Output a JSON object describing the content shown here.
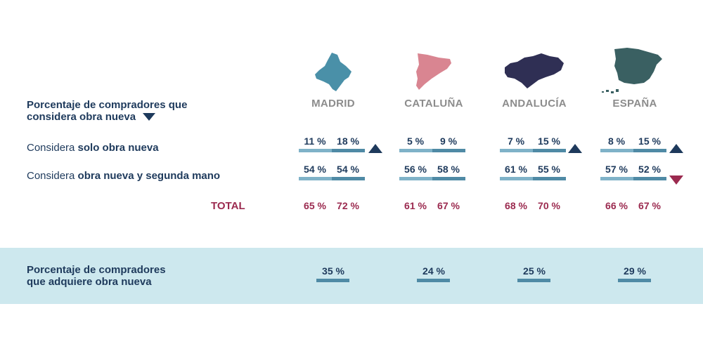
{
  "header": {
    "question_line1": "Porcentaje de compradores que",
    "question_line2": "considera obra nueva"
  },
  "rows": {
    "solo_prefix": "Considera ",
    "solo_bold": "solo obra nueva",
    "mixta_prefix": "Considera ",
    "mixta_bold": "obra nueva y segunda mano",
    "total_label": "TOTAL"
  },
  "regions": [
    {
      "name": "MADRID",
      "map_color": "#4a90a8",
      "solo": [
        "11 %",
        "18 %"
      ],
      "mixta": [
        "54 %",
        "54 %"
      ],
      "total": [
        "65 %",
        "72 %"
      ],
      "solo_trend": "up",
      "mixta_trend": "",
      "adquiere": "35 %"
    },
    {
      "name": "CATALUÑA",
      "map_color": "#d98591",
      "solo": [
        "5 %",
        "9 %"
      ],
      "mixta": [
        "56 %",
        "58 %"
      ],
      "total": [
        "61 %",
        "67 %"
      ],
      "solo_trend": "",
      "mixta_trend": "",
      "adquiere": "24 %"
    },
    {
      "name": "ANDALUCÍA",
      "map_color": "#2f2f54",
      "solo": [
        "7 %",
        "15 %"
      ],
      "mixta": [
        "61 %",
        "55 %"
      ],
      "total": [
        "68 %",
        "70 %"
      ],
      "solo_trend": "up",
      "mixta_trend": "",
      "adquiere": "25 %"
    },
    {
      "name": "ESPAÑA",
      "map_color": "#3a6062",
      "solo": [
        "8 %",
        "15 %"
      ],
      "mixta": [
        "57 %",
        "52 %"
      ],
      "total": [
        "66 %",
        "67 %"
      ],
      "solo_trend": "up",
      "mixta_trend": "down",
      "adquiere": "29 %"
    }
  ],
  "band": {
    "line1": "Porcentaje de compradores",
    "line2": "que adquiere obra nueva"
  },
  "colors": {
    "navy": "#1e3a5c",
    "crimson": "#9b2a4f",
    "bar_light": "#7fb2c8",
    "bar_dark": "#4f8aa5",
    "band_bg": "#cde8ee"
  },
  "chart_data": {
    "type": "table",
    "columns": [
      "MADRID",
      "CATALUÑA",
      "ANDALUCÍA",
      "ESPAÑA"
    ],
    "rows": [
      {
        "label": "Considera solo obra nueva",
        "values": [
          [
            11,
            18
          ],
          [
            5,
            9
          ],
          [
            7,
            15
          ],
          [
            8,
            15
          ]
        ]
      },
      {
        "label": "Considera obra nueva y segunda mano",
        "values": [
          [
            54,
            54
          ],
          [
            56,
            58
          ],
          [
            61,
            55
          ],
          [
            57,
            52
          ]
        ]
      },
      {
        "label": "TOTAL",
        "values": [
          [
            65,
            72
          ],
          [
            61,
            67
          ],
          [
            68,
            70
          ],
          [
            66,
            67
          ]
        ]
      },
      {
        "label": "Porcentaje de compradores que adquiere obra nueva",
        "values": [
          35,
          24,
          25,
          29
        ]
      }
    ],
    "unit": "%"
  }
}
